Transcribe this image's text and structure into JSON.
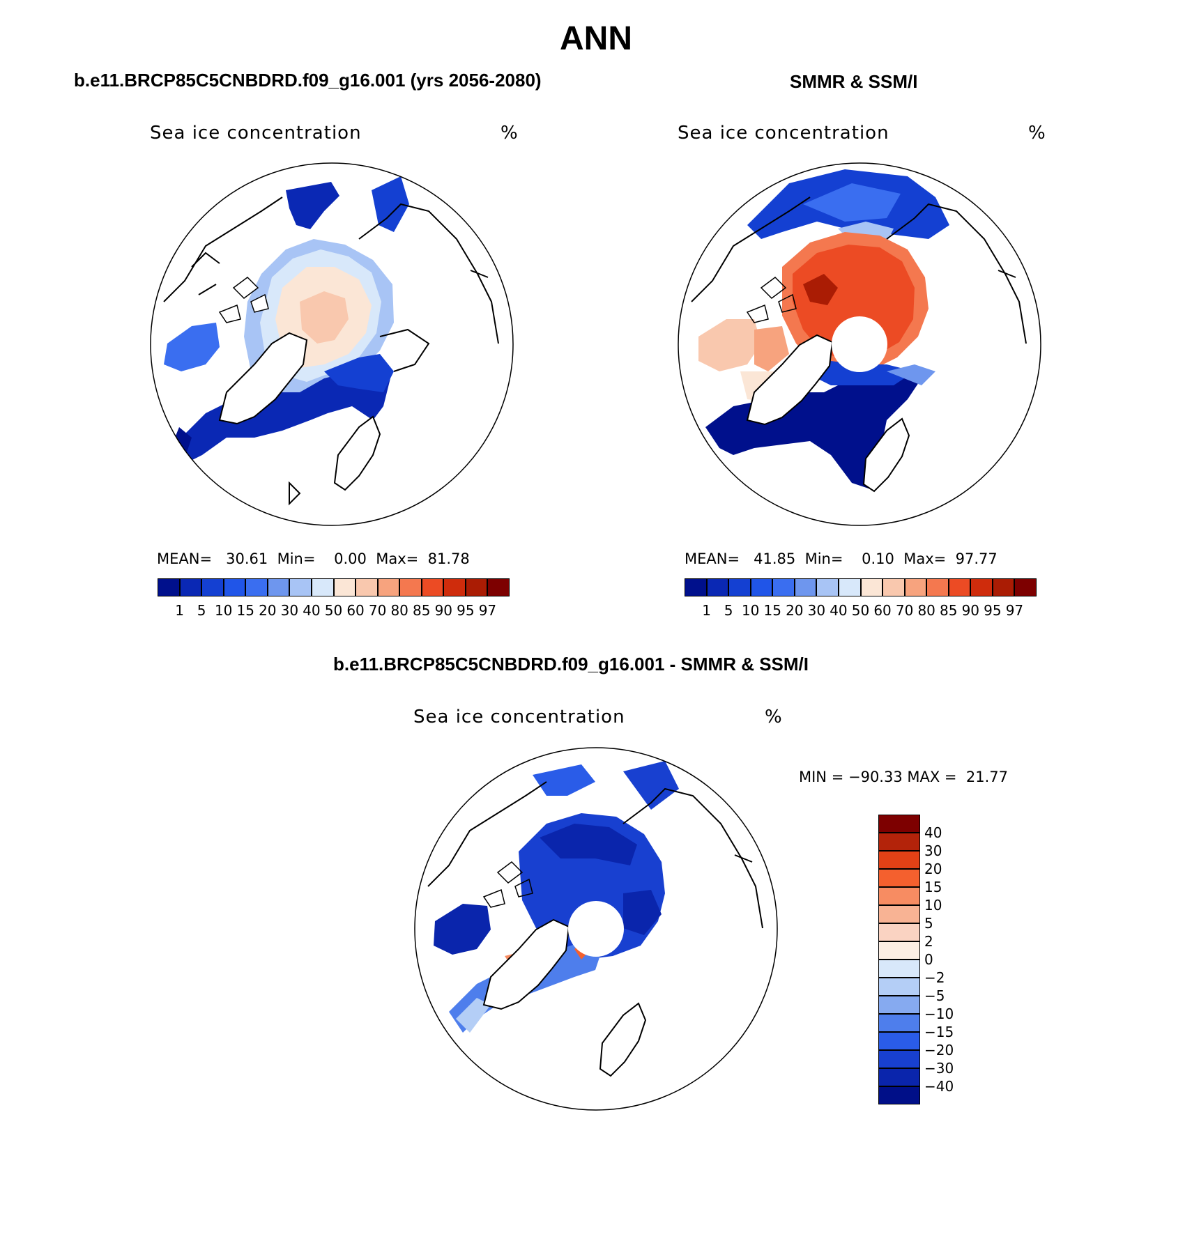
{
  "page_title": "ANN",
  "panels": {
    "model": {
      "title": "b.e11.BRCP85C5CNBDRD.f09_g16.001 (yrs 2056-2080)",
      "variable": "Sea ice concentration",
      "units": "%",
      "mean_label": "MEAN=",
      "mean_value": "30.61",
      "min_label": "Min=",
      "min_value": "0.00",
      "max_label": "Max=",
      "max_value": "81.78"
    },
    "obs": {
      "title": "SMMR & SSM/I",
      "variable": "Sea ice concentration",
      "units": "%",
      "mean_label": "MEAN=",
      "mean_value": "41.85",
      "min_label": "Min=",
      "min_value": "0.10",
      "max_label": "Max=",
      "max_value": "97.77"
    },
    "diff": {
      "title": "b.e11.BRCP85C5CNBDRD.f09_g16.001 - SMMR & SSM/I",
      "variable": "Sea ice concentration",
      "units": "%",
      "min_label": "MIN =",
      "min_value": "−90.33",
      "max_label": "MAX =",
      "max_value": "21.77"
    }
  },
  "colorbars": {
    "concentration": {
      "levels": [
        "1",
        "5",
        "10",
        "15",
        "20",
        "30",
        "40",
        "50",
        "60",
        "70",
        "80",
        "85",
        "90",
        "95",
        "97"
      ],
      "colors": [
        "#00108c",
        "#0a28b4",
        "#1440d2",
        "#2055e8",
        "#3a6ef0",
        "#6e96ee",
        "#a8c4f5",
        "#d8e8fa",
        "#fbe6d6",
        "#f9c8ae",
        "#f7a37e",
        "#f4784f",
        "#ec4b24",
        "#cf2c0c",
        "#aa1c04",
        "#7d0000"
      ]
    },
    "difference": {
      "levels": [
        "40",
        "30",
        "20",
        "15",
        "10",
        "5",
        "2",
        "0",
        "−2",
        "−5",
        "−10",
        "−15",
        "−20",
        "−30",
        "−40"
      ],
      "colors": [
        "#7d0000",
        "#b3230a",
        "#e24116",
        "#f4602e",
        "#f78c62",
        "#f8b394",
        "#fad3c2",
        "#fbeee4",
        "#d8e8fa",
        "#b4cef6",
        "#86aaf0",
        "#4e7eec",
        "#2a5ce8",
        "#1840d0",
        "#0a25ac",
        "#000f88"
      ]
    }
  },
  "map_colors": {
    "land": "#ffffff",
    "coast": "#000000",
    "ocean_open": "#ffffff",
    "pole_hole": "#ffffff"
  }
}
